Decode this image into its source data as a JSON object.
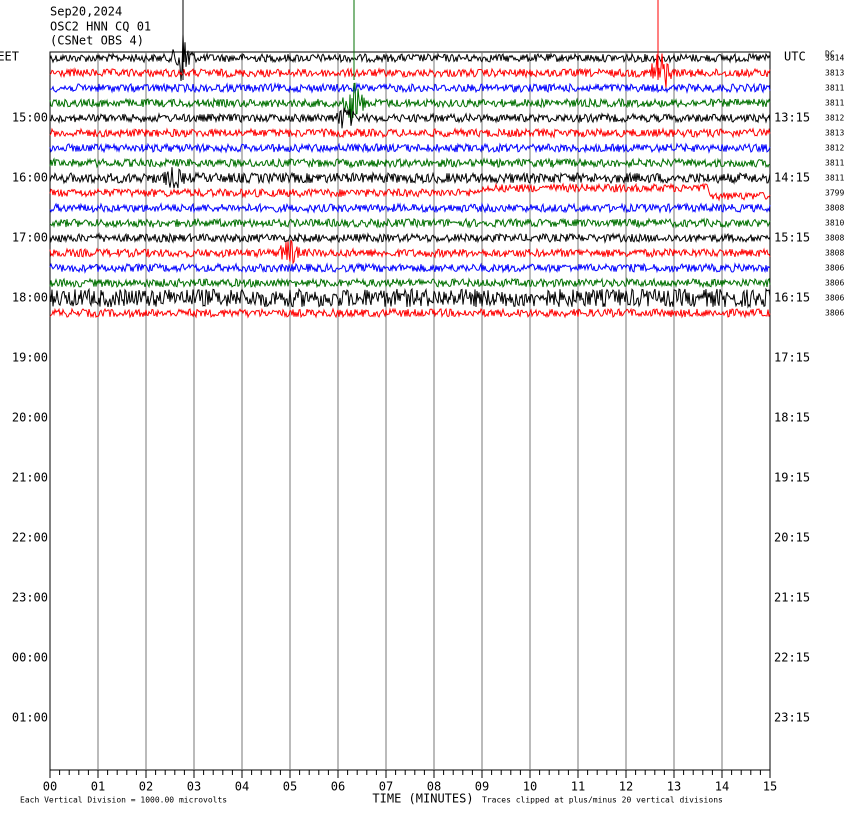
{
  "header": {
    "date": "Sep20,2024",
    "station": "OSC2 HNN CQ 01",
    "network": "(CSNet OBS 4)"
  },
  "left_axis": {
    "label": "EET",
    "hours": [
      "15:00",
      "16:00",
      "17:00",
      "18:00",
      "19:00",
      "20:00",
      "21:00",
      "22:00",
      "23:00",
      "00:00",
      "01:00"
    ]
  },
  "right_axis": {
    "label": "UTC",
    "hours": [
      "13:15",
      "14:15",
      "15:15",
      "16:15",
      "17:15",
      "18:15",
      "19:15",
      "20:15",
      "21:15",
      "22:15",
      "23:15"
    ]
  },
  "dc": {
    "label": "DC",
    "values": [
      "3814",
      "3813",
      "3811",
      "3811",
      "3812",
      "3813",
      "3812",
      "3811",
      "3811",
      "3799",
      "3808",
      "3810",
      "3808",
      "3808",
      "3806",
      "3806",
      "3806",
      "3806"
    ]
  },
  "x_axis": {
    "title": "TIME (MINUTES)",
    "ticks": [
      "00",
      "01",
      "02",
      "03",
      "04",
      "05",
      "06",
      "07",
      "08",
      "09",
      "10",
      "11",
      "12",
      "13",
      "14",
      "15"
    ]
  },
  "footer": {
    "scale_note": "Each Vertical Division = 1000.00 microvolts",
    "clip_note": "Traces clipped at plus/minus 20 vertical divisions"
  },
  "trace_colors": [
    "#000000",
    "#ff0000",
    "#0000ff",
    "#007000"
  ]
}
